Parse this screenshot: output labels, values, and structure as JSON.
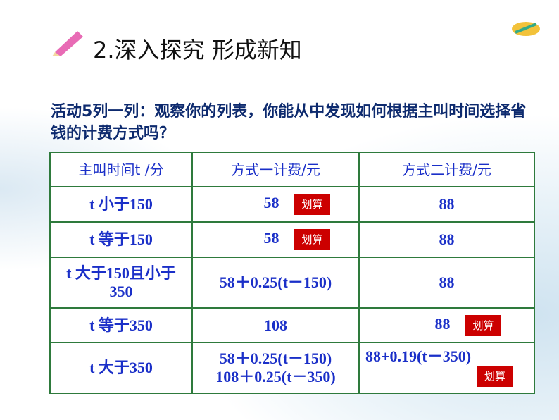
{
  "title": "2.深入探究 形成新知",
  "question": "活动5列一列：观察你的列表，你能从中发现如何根据主叫时间选择省钱的计费方式吗？",
  "badge": "划算",
  "headers": [
    "主叫时间t /分",
    "方式一计费/元",
    "方式二计费/元"
  ],
  "rows": [
    {
      "cond": "t 小于150",
      "m1": "58",
      "m2": "88",
      "best": "m1"
    },
    {
      "cond": "t 等于150",
      "m1": "58",
      "m2": "88",
      "best": "m1"
    },
    {
      "cond": "t 大于150且小于350",
      "m1": "58＋0.25(t－150)",
      "m2": "88",
      "best": ""
    },
    {
      "cond": "t 等于350",
      "m1": "108",
      "m2": "88",
      "best": "m2"
    },
    {
      "cond": "t 大于350",
      "m1": "58＋0.25(t－150)",
      "m1b": "108＋0.25(t－350)",
      "m2": "88+0.19(t－350)",
      "best": "m2"
    }
  ]
}
